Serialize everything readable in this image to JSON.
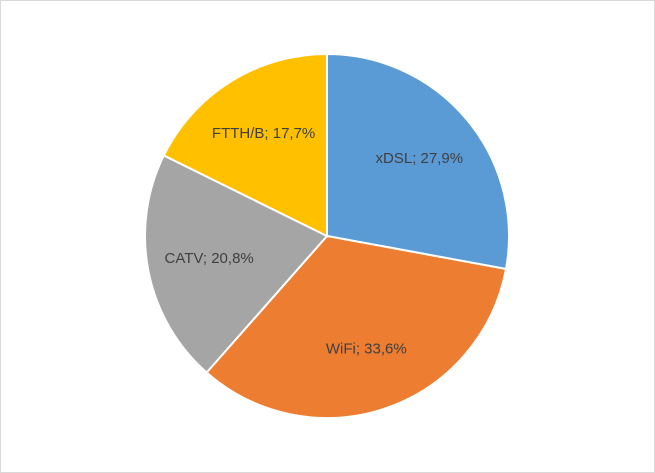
{
  "chart_data": {
    "type": "pie",
    "values": [
      27.9,
      33.6,
      20.8,
      17.7
    ],
    "value_labels": [
      "xDSL; 27,9%",
      "WiFi; 33,6%",
      "CATV; 20,8%",
      "FTTH/B; 17,7%"
    ],
    "colors": [
      "#5b9bd5",
      "#ed7d31",
      "#a5a5a5",
      "#ffc000"
    ]
  }
}
